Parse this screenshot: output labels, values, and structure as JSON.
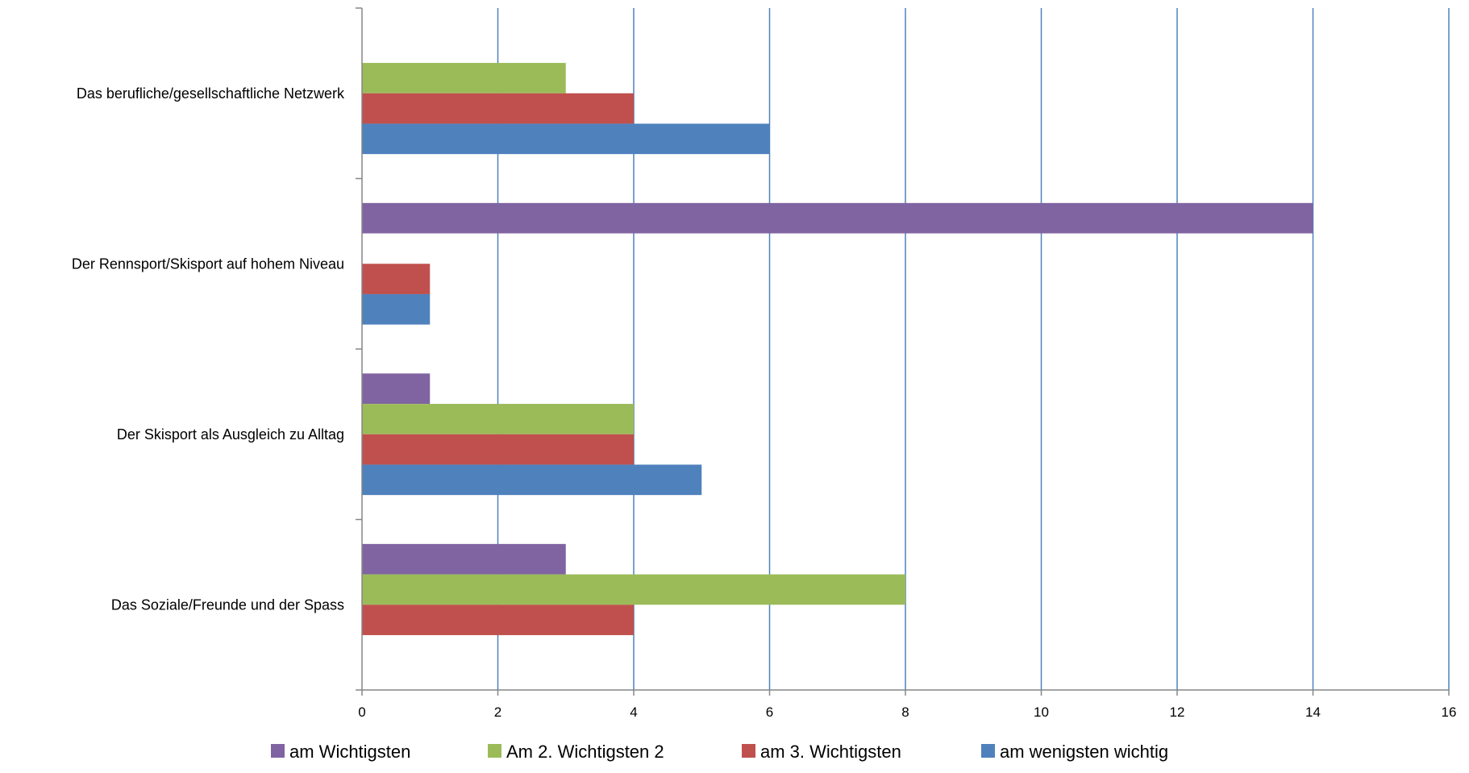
{
  "chart_data": {
    "type": "bar",
    "orientation": "horizontal",
    "categories": [
      "Das berufliche/gesellschaftliche Netzwerk",
      "Der Rennsport/Skisport auf hohem Niveau",
      "Der Skisport als Ausgleich zu Alltag",
      "Das Soziale/Freunde und der Spass"
    ],
    "series": [
      {
        "name": "am Wichtigsten",
        "color": "#8064A2",
        "values": [
          0,
          14,
          1,
          3
        ]
      },
      {
        "name": "Am 2. Wichtigsten 2",
        "color": "#9BBB59",
        "values": [
          3,
          0,
          4,
          8
        ]
      },
      {
        "name": "am 3. Wichtigsten",
        "color": "#C0504D",
        "values": [
          4,
          1,
          4,
          4
        ]
      },
      {
        "name": "am wenigsten wichtig",
        "color": "#4F81BD",
        "values": [
          6,
          1,
          5,
          0
        ]
      }
    ],
    "xlim": [
      0,
      16
    ],
    "xticks": [
      "0",
      "2",
      "4",
      "6",
      "8",
      "10",
      "12",
      "14",
      "16"
    ],
    "grid": true,
    "gridline_color": "#4F81BD",
    "axis_color": "#868686",
    "legend_position": "bottom"
  }
}
